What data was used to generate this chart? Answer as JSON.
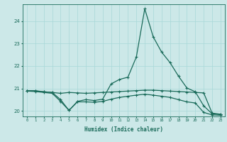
{
  "xlabel": "Humidex (Indice chaleur)",
  "bg_color": "#cce8e8",
  "line_color": "#1a6b5a",
  "x": [
    0,
    1,
    2,
    3,
    4,
    5,
    6,
    7,
    8,
    9,
    10,
    11,
    12,
    13,
    14,
    15,
    16,
    17,
    18,
    19,
    20,
    21,
    22,
    23
  ],
  "line1": [
    20.9,
    20.9,
    20.85,
    20.82,
    20.78,
    20.82,
    20.8,
    20.78,
    20.8,
    20.82,
    20.84,
    20.86,
    20.88,
    20.9,
    20.92,
    20.92,
    20.9,
    20.88,
    20.86,
    20.84,
    20.82,
    20.8,
    19.9,
    19.85
  ],
  "line2": [
    20.9,
    20.88,
    20.85,
    20.82,
    20.5,
    20.02,
    20.42,
    20.5,
    20.46,
    20.52,
    21.2,
    21.4,
    21.5,
    22.4,
    24.55,
    23.3,
    22.62,
    22.15,
    21.55,
    21.02,
    20.85,
    20.22,
    19.87,
    19.83
  ],
  "line3": [
    20.88,
    20.86,
    20.82,
    20.78,
    20.42,
    20.02,
    20.4,
    20.4,
    20.38,
    20.42,
    20.52,
    20.6,
    20.65,
    20.7,
    20.74,
    20.7,
    20.65,
    20.6,
    20.5,
    20.4,
    20.35,
    19.93,
    19.82,
    19.8
  ],
  "ylim": [
    19.75,
    24.75
  ],
  "yticks": [
    20,
    21,
    22,
    23,
    24
  ],
  "grid_color": "#a8d8d8",
  "marker_size": 2.5,
  "line_width": 0.9
}
